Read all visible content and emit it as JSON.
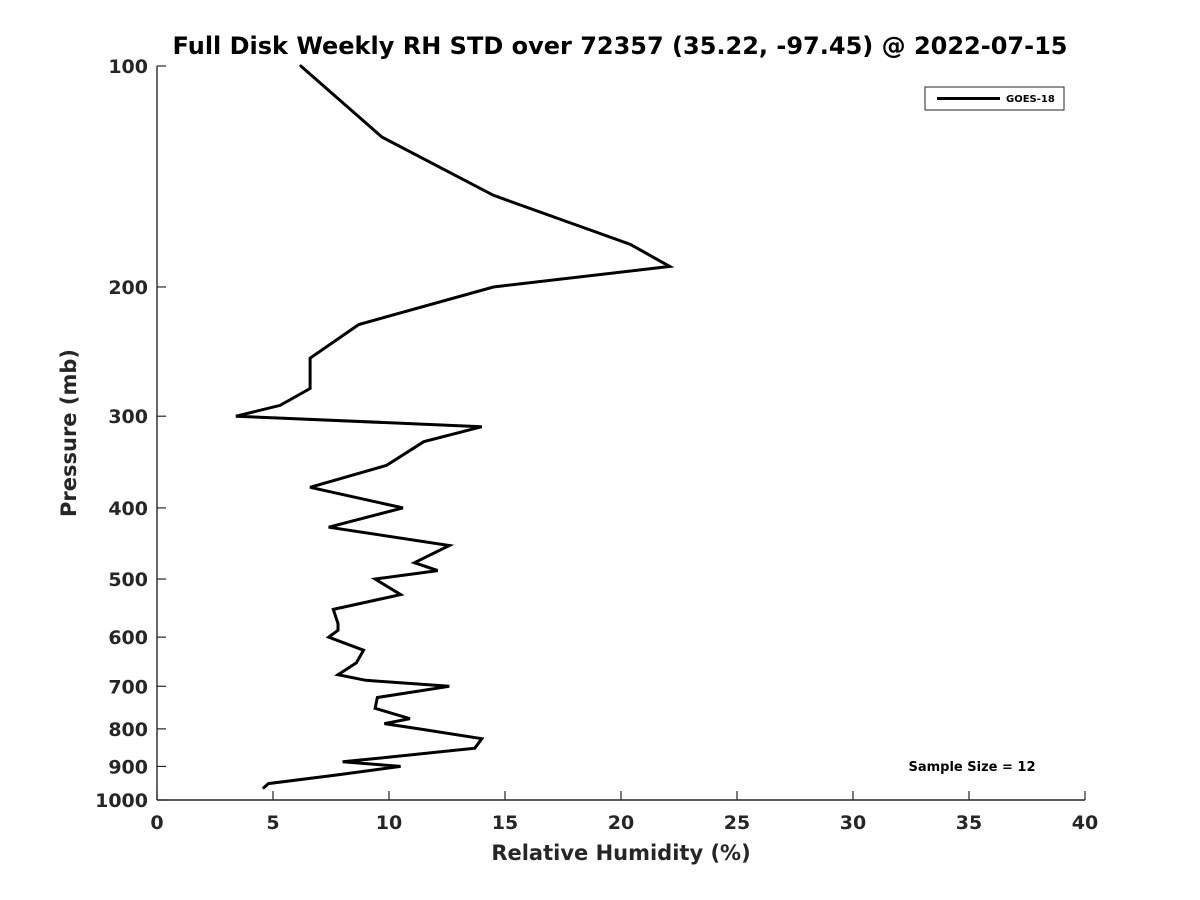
{
  "chart_data": {
    "type": "line",
    "title": "Full Disk Weekly RH STD over 72357 (35.22, -97.45) @ 2022-07-15",
    "xlabel": "Relative Humidity (%)",
    "ylabel": "Pressure (mb)",
    "xlim": [
      0,
      40
    ],
    "ylim": [
      1000,
      100
    ],
    "y_scale": "log",
    "y_reversed": true,
    "grid": false,
    "legend_placement": "top-right",
    "x_ticks": [
      "0",
      "5",
      "10",
      "15",
      "20",
      "25",
      "30",
      "35",
      "40"
    ],
    "y_ticks": [
      "100",
      "200",
      "300",
      "400",
      "500",
      "600",
      "700",
      "800",
      "900",
      "1000"
    ],
    "annotation": "Sample Size = 12",
    "series": [
      {
        "name": "GOES-18",
        "color": "#000000",
        "points": [
          [
            6.2,
            100
          ],
          [
            9.7,
            125
          ],
          [
            14.5,
            150
          ],
          [
            20.4,
            175
          ],
          [
            22.1,
            187.5
          ],
          [
            14.5,
            200
          ],
          [
            8.7,
            225
          ],
          [
            6.6,
            250
          ],
          [
            6.6,
            275
          ],
          [
            5.3,
            290
          ],
          [
            3.4,
            300
          ],
          [
            14.0,
            310
          ],
          [
            11.5,
            325
          ],
          [
            9.9,
            350
          ],
          [
            6.6,
            375
          ],
          [
            10.6,
            400
          ],
          [
            7.4,
            425
          ],
          [
            12.6,
            450
          ],
          [
            11.1,
            475
          ],
          [
            12.1,
            487
          ],
          [
            9.4,
            500
          ],
          [
            10.5,
            525
          ],
          [
            7.6,
            550
          ],
          [
            7.8,
            575
          ],
          [
            7.8,
            587
          ],
          [
            7.4,
            600
          ],
          [
            8.9,
            625
          ],
          [
            8.6,
            650
          ],
          [
            7.8,
            675
          ],
          [
            9.0,
            687
          ],
          [
            12.6,
            700
          ],
          [
            9.5,
            725
          ],
          [
            9.4,
            750
          ],
          [
            10.9,
            775
          ],
          [
            9.8,
            787
          ],
          [
            11.3,
            800
          ],
          [
            14.0,
            825
          ],
          [
            13.7,
            850
          ],
          [
            9.9,
            875
          ],
          [
            8.0,
            887
          ],
          [
            10.5,
            900
          ],
          [
            7.7,
            925
          ],
          [
            4.8,
            950
          ],
          [
            4.6,
            962
          ]
        ]
      }
    ]
  }
}
